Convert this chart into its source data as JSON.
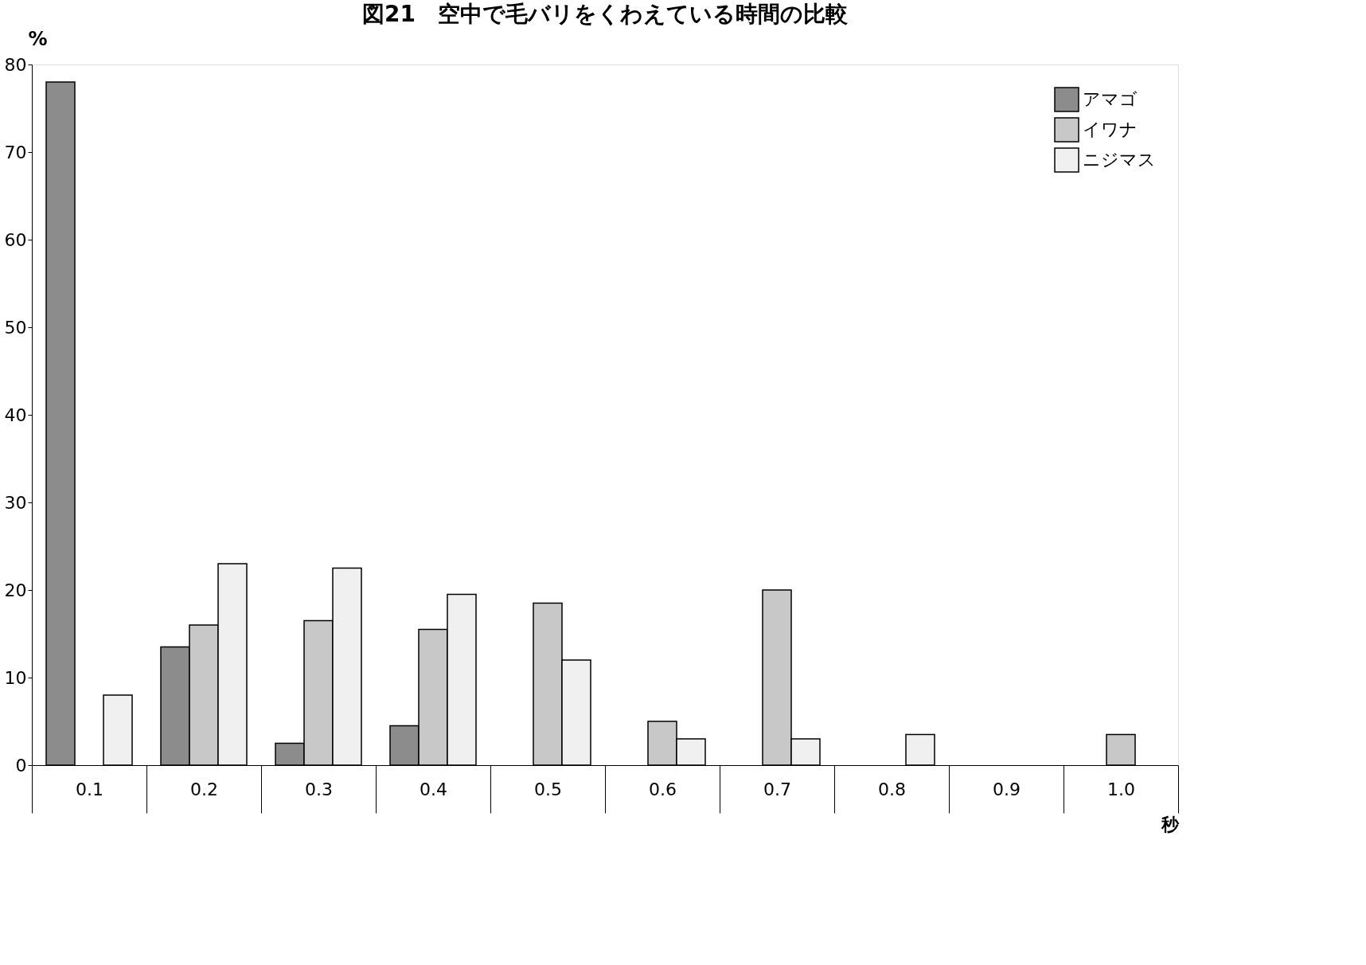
{
  "chart_data": {
    "type": "bar",
    "title": "図21　空中で毛バリをくわえている時間の比較",
    "xlabel": "秒",
    "ylabel": "%",
    "categories": [
      "0.1",
      "0.2",
      "0.3",
      "0.4",
      "0.5",
      "0.6",
      "0.7",
      "0.8",
      "0.9",
      "1.0"
    ],
    "series": [
      {
        "name": "アマゴ",
        "color": "#8c8c8c",
        "values": [
          78,
          13.5,
          2.5,
          4.5,
          null,
          null,
          null,
          null,
          null,
          null
        ]
      },
      {
        "name": "イワナ",
        "color": "#c8c8c8",
        "values": [
          null,
          16,
          16.5,
          15.5,
          18.5,
          5,
          20,
          null,
          null,
          3.5
        ]
      },
      {
        "name": "ニジマス",
        "color": "#f0f0f0",
        "values": [
          8,
          23,
          22.5,
          19.5,
          12,
          3,
          3,
          3.5,
          null,
          null
        ]
      }
    ],
    "ylim": [
      0,
      80
    ],
    "yticks": [
      0,
      10,
      20,
      30,
      40,
      50,
      60,
      70,
      80
    ],
    "grid": false,
    "legend": "top right"
  }
}
